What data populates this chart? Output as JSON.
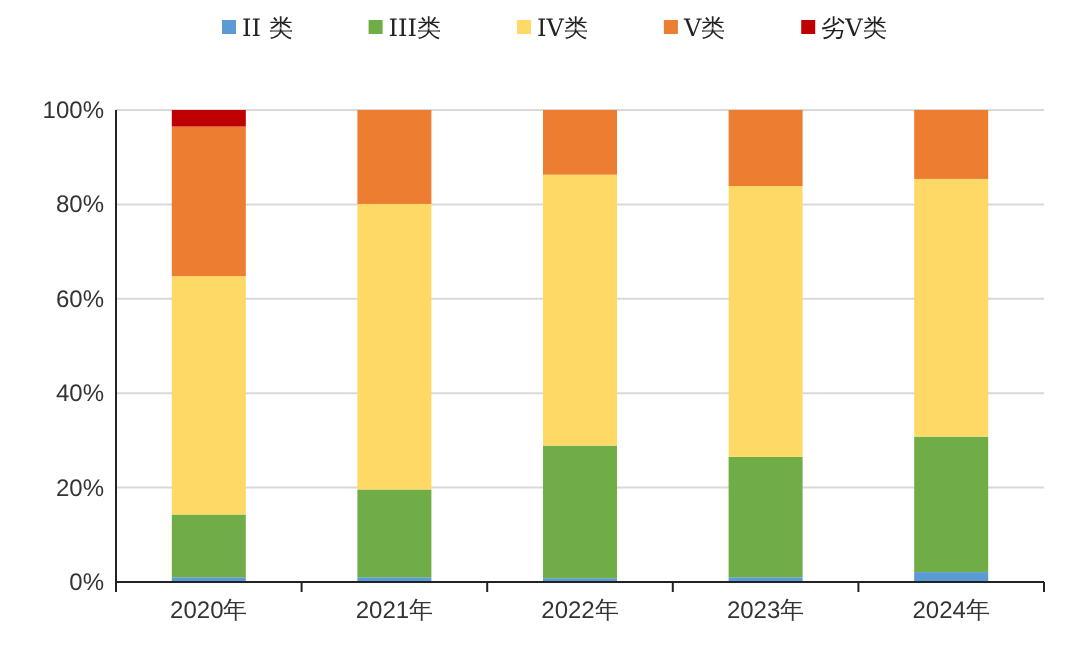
{
  "chart_data": {
    "type": "bar",
    "stacked": true,
    "categories": [
      "2020年",
      "2021年",
      "2022年",
      "2023年",
      "2024年"
    ],
    "series": [
      {
        "name": "II 类",
        "color": "#5b9bd5",
        "values": [
          1,
          1,
          0.8,
          1,
          2.1
        ]
      },
      {
        "name": "III类",
        "color": "#70ad47",
        "values": [
          13.3,
          18.6,
          28.1,
          25.5,
          28.7
        ]
      },
      {
        "name": "IV类",
        "color": "#ffd966",
        "values": [
          50.5,
          60.5,
          57.4,
          57.4,
          54.6
        ]
      },
      {
        "name": "V类",
        "color": "#ed7d31",
        "values": [
          31.7,
          19.9,
          13.7,
          16.1,
          14.6
        ]
      },
      {
        "name": "劣V类",
        "color": "#c00000",
        "values": [
          3.5,
          0,
          0,
          0,
          0
        ]
      }
    ],
    "ylim": [
      0,
      100
    ],
    "yticks": [
      {
        "value": 0,
        "label": "0%"
      },
      {
        "value": 20,
        "label": "20%"
      },
      {
        "value": 40,
        "label": "40%"
      },
      {
        "value": 60,
        "label": "60%"
      },
      {
        "value": 80,
        "label": "80%"
      },
      {
        "value": 100,
        "label": "100%"
      }
    ],
    "grid": "y",
    "legend": "top"
  }
}
